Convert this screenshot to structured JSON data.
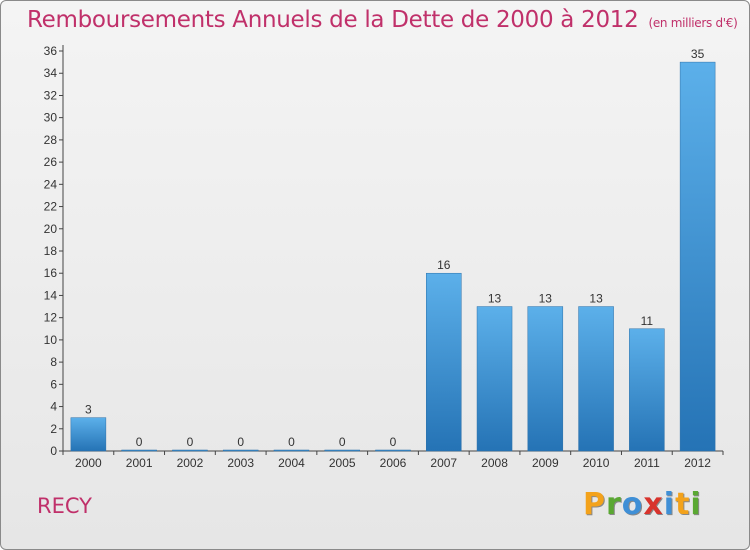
{
  "header": {
    "title": "Remboursements Annuels de la Dette de 2000 à 2012",
    "unit": "(en milliers d'€)"
  },
  "footer": {
    "commune": "RECY",
    "logo_letters": [
      "P",
      "r",
      "o",
      "x",
      "i",
      "t",
      "i"
    ],
    "logo_colors": [
      "#f3a21b",
      "#5aa832",
      "#3f8fd6",
      "#d8332c",
      "#3f8fd6",
      "#f3a21b",
      "#5aa832"
    ]
  },
  "chart_data": {
    "type": "bar",
    "categories": [
      "2000",
      "2001",
      "2002",
      "2003",
      "2004",
      "2005",
      "2006",
      "2007",
      "2008",
      "2009",
      "2010",
      "2011",
      "2012"
    ],
    "values": [
      3,
      0,
      0,
      0,
      0,
      0,
      0,
      16,
      13,
      13,
      13,
      11,
      35
    ],
    "ylim": [
      0,
      36
    ],
    "yticks": [
      0,
      2,
      4,
      6,
      8,
      10,
      12,
      14,
      16,
      18,
      20,
      22,
      24,
      26,
      28,
      30,
      32,
      34,
      36
    ],
    "grid": false,
    "bar_color": "#3f94d8"
  }
}
